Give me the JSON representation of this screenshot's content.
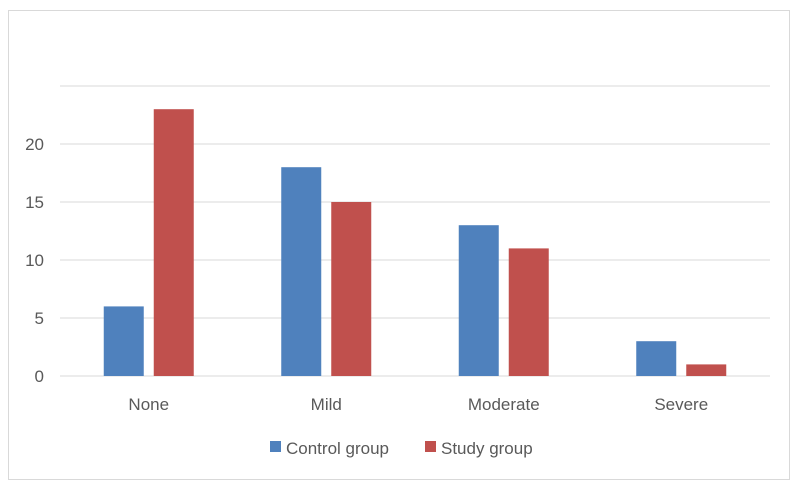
{
  "chart_data": {
    "type": "bar",
    "title": "",
    "xlabel": "",
    "ylabel": "",
    "categories": [
      "None",
      "Mild",
      "Moderate",
      "Severe"
    ],
    "series": [
      {
        "name": "Control group",
        "values": [
          6,
          18,
          13,
          3
        ],
        "color": "#4f81bd"
      },
      {
        "name": "Study group",
        "values": [
          23,
          15,
          11,
          1
        ],
        "color": "#c0504d"
      }
    ],
    "ylim": [
      0,
      25
    ],
    "yticks": [
      0,
      5,
      10,
      15,
      20
    ],
    "grid": true,
    "legend_position": "bottom"
  }
}
